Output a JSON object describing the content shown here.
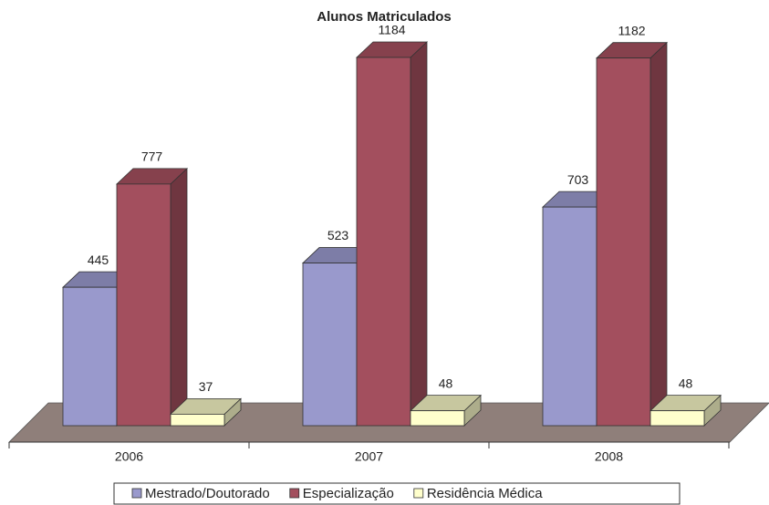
{
  "chart_data": {
    "type": "bar3d",
    "title": "Alunos Matriculados",
    "categories": [
      "2006",
      "2007",
      "2008"
    ],
    "series": [
      {
        "name": "Mestrado/Doutorado",
        "color": "#9999cc",
        "values": [
          445,
          523,
          703
        ]
      },
      {
        "name": "Especialização",
        "color": "#a34f5e",
        "values": [
          777,
          1184,
          1182
        ]
      },
      {
        "name": "Residência Médica",
        "color": "#ffffcc",
        "values": [
          37,
          48,
          48
        ]
      }
    ],
    "legend": "bottom"
  }
}
